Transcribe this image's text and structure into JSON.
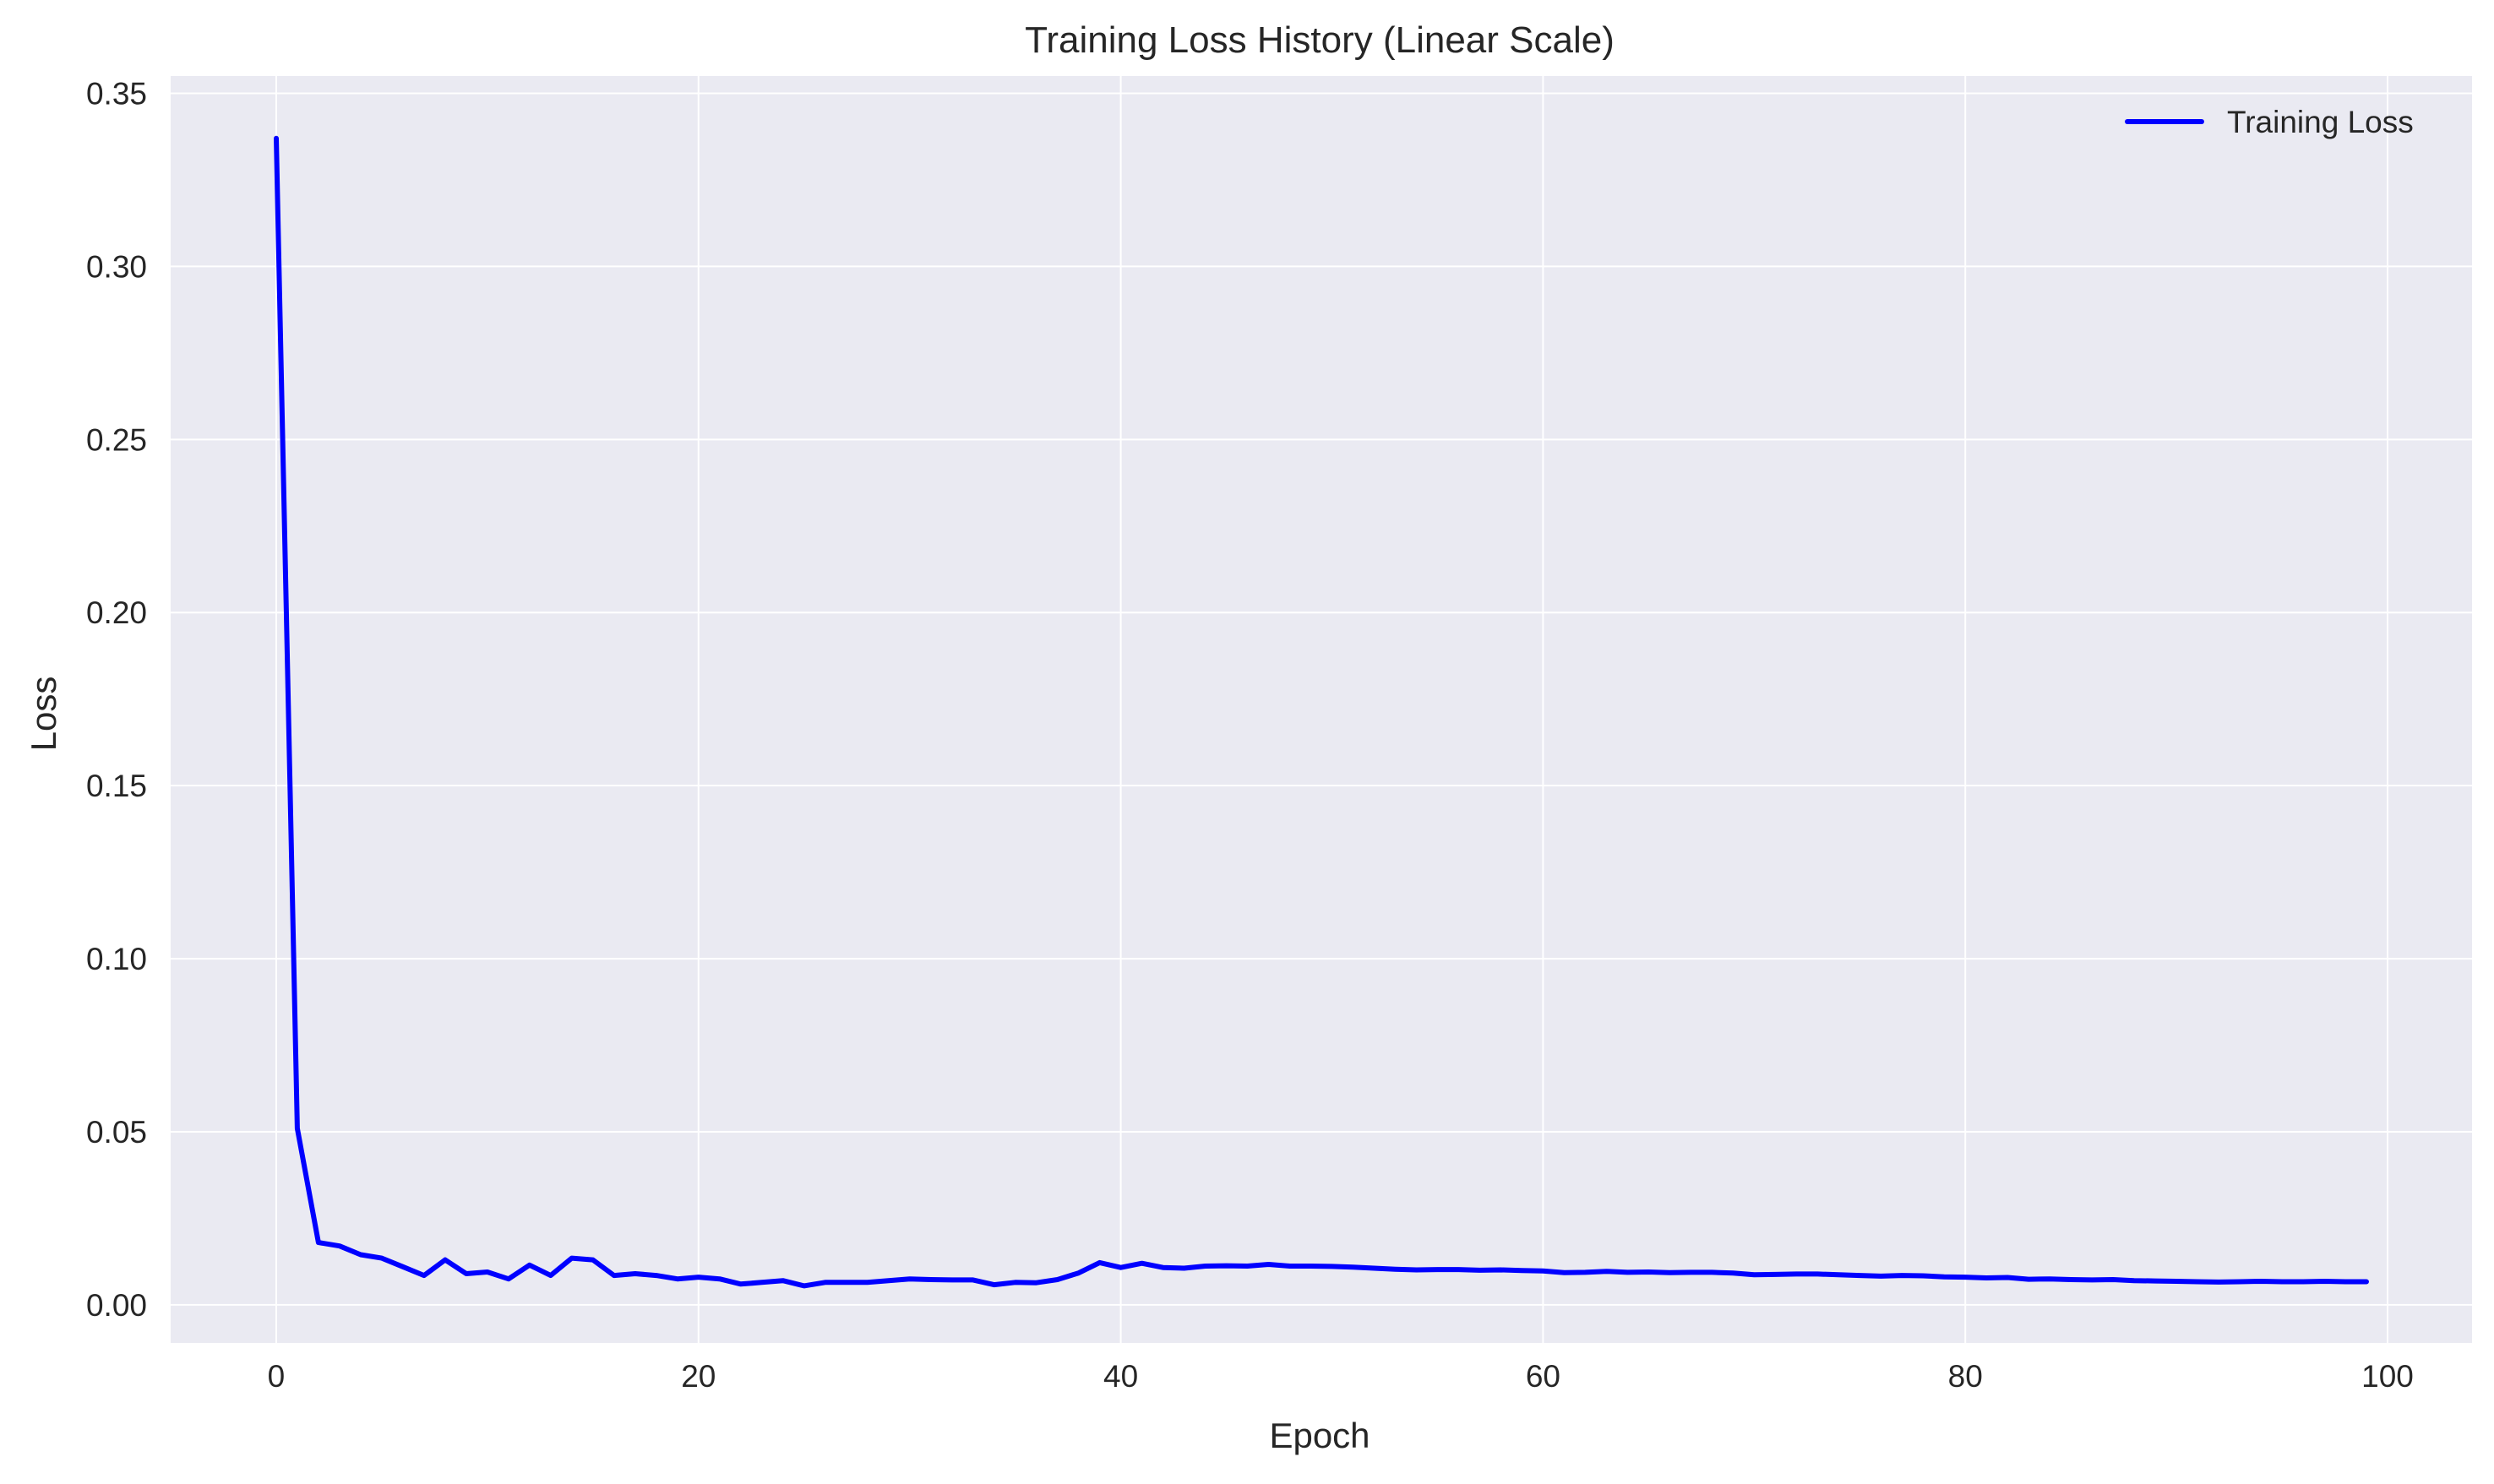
{
  "chart_data": {
    "type": "line",
    "title": "Training Loss History (Linear Scale)",
    "xlabel": "Epoch",
    "ylabel": "Loss",
    "xlim": [
      -5,
      104
    ],
    "ylim": [
      -0.011,
      0.355
    ],
    "xticks": [
      0,
      20,
      40,
      60,
      80,
      100
    ],
    "xtick_labels": [
      "0",
      "20",
      "40",
      "60",
      "80",
      "100"
    ],
    "yticks": [
      0.0,
      0.05,
      0.1,
      0.15,
      0.2,
      0.25,
      0.3,
      0.35
    ],
    "ytick_labels": [
      "0.00",
      "0.05",
      "0.10",
      "0.15",
      "0.20",
      "0.25",
      "0.30",
      "0.35"
    ],
    "grid": true,
    "legend_position": "top-right",
    "colors": {
      "plot_bg": "#EAEAF2",
      "grid": "#FFFFFF",
      "line": "#0000FF"
    },
    "series": [
      {
        "name": "Training Loss",
        "color": "#0000FF",
        "x": [
          0,
          1,
          2,
          3,
          4,
          5,
          6,
          7,
          8,
          9,
          10,
          11,
          12,
          13,
          14,
          15,
          16,
          17,
          18,
          19,
          20,
          21,
          22,
          23,
          24,
          25,
          26,
          27,
          28,
          29,
          30,
          31,
          32,
          33,
          34,
          35,
          36,
          37,
          38,
          39,
          40,
          41,
          42,
          43,
          44,
          45,
          46,
          47,
          48,
          49,
          50,
          51,
          52,
          53,
          54,
          55,
          56,
          57,
          58,
          59,
          60,
          61,
          62,
          63,
          64,
          65,
          66,
          67,
          68,
          69,
          70,
          71,
          72,
          73,
          74,
          75,
          76,
          77,
          78,
          79,
          80,
          81,
          82,
          83,
          84,
          85,
          86,
          87,
          88,
          89,
          90,
          91,
          92,
          93,
          94,
          95,
          96,
          97,
          98,
          99
        ],
        "values": [
          0.337,
          0.051,
          0.018,
          0.017,
          0.0145,
          0.0135,
          0.011,
          0.0085,
          0.013,
          0.009,
          0.0095,
          0.0075,
          0.0115,
          0.0085,
          0.0135,
          0.013,
          0.0085,
          0.009,
          0.0085,
          0.0075,
          0.008,
          0.0075,
          0.006,
          0.0065,
          0.007,
          0.0055,
          0.0065,
          0.0065,
          0.0065,
          0.007,
          0.0075,
          0.0073,
          0.0072,
          0.0072,
          0.0058,
          0.0065,
          0.0064,
          0.0073,
          0.0092,
          0.0122,
          0.0108,
          0.012,
          0.0108,
          0.0106,
          0.0112,
          0.0113,
          0.0112,
          0.0117,
          0.0112,
          0.0112,
          0.0111,
          0.0109,
          0.0106,
          0.0103,
          0.0101,
          0.0102,
          0.0102,
          0.01,
          0.0101,
          0.0099,
          0.0098,
          0.0093,
          0.0094,
          0.0097,
          0.0094,
          0.0095,
          0.0093,
          0.0094,
          0.0094,
          0.0092,
          0.0087,
          0.0088,
          0.0089,
          0.0089,
          0.0087,
          0.0085,
          0.0083,
          0.0085,
          0.0084,
          0.0081,
          0.008,
          0.0078,
          0.0079,
          0.0074,
          0.0075,
          0.0073,
          0.0072,
          0.0073,
          0.007,
          0.0069,
          0.0068,
          0.0067,
          0.0066,
          0.0067,
          0.0068,
          0.0067,
          0.0067,
          0.0068,
          0.0067,
          0.0067
        ]
      }
    ]
  }
}
